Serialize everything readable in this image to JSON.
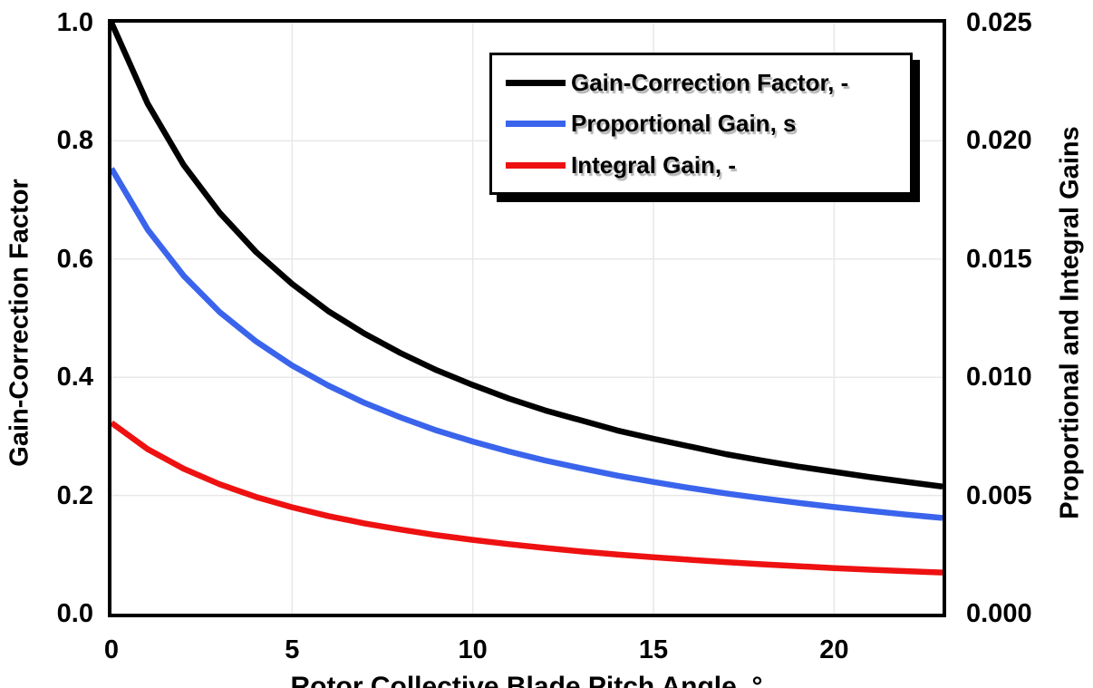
{
  "chart_data": {
    "type": "line",
    "title": "",
    "xlabel": "Rotor Collective Blade Pitch Angle, °",
    "ylabel_left": "Gain-Correction Factor",
    "ylabel_right": "Proportional and Integral Gains",
    "xlim": [
      0,
      23
    ],
    "ylim_left": [
      0,
      1.0
    ],
    "ylim_right": [
      0,
      0.025
    ],
    "grid": true,
    "legend_position": "top-right-inside",
    "x_ticks": [
      "0",
      "5",
      "10",
      "15",
      "20"
    ],
    "x_tick_values": [
      0,
      5,
      10,
      15,
      20
    ],
    "y_ticks_left": [
      "0.0",
      "0.2",
      "0.4",
      "0.6",
      "0.8",
      "1.0"
    ],
    "y_tick_values_left": [
      0,
      0.2,
      0.4,
      0.6,
      0.8,
      1.0
    ],
    "y_ticks_right": [
      "0.000",
      "0.005",
      "0.010",
      "0.015",
      "0.020",
      "0.025"
    ],
    "y_tick_values_right": [
      0,
      0.005,
      0.01,
      0.015,
      0.02,
      0.025
    ],
    "x": [
      0,
      1,
      2,
      3,
      4,
      5,
      6,
      7,
      8,
      9,
      10,
      11,
      12,
      13,
      14,
      15,
      16,
      17,
      18,
      19,
      20,
      21,
      22,
      23
    ],
    "series": [
      {
        "name": "Gain-Correction Factor, -",
        "axis": "left",
        "color": "#000000",
        "values": [
          1.0,
          0.863,
          0.759,
          0.678,
          0.612,
          0.558,
          0.512,
          0.474,
          0.441,
          0.412,
          0.387,
          0.364,
          0.344,
          0.327,
          0.31,
          0.296,
          0.283,
          0.27,
          0.259,
          0.249,
          0.24,
          0.231,
          0.223,
          0.215
        ]
      },
      {
        "name": "Proportional Gain, s",
        "axis": "right",
        "color": "#3A64EC",
        "values": [
          0.01883,
          0.01625,
          0.01429,
          0.01275,
          0.01152,
          0.0105,
          0.00965,
          0.00892,
          0.0083,
          0.00775,
          0.00728,
          0.00686,
          0.00648,
          0.00615,
          0.00584,
          0.00557,
          0.00532,
          0.00509,
          0.00488,
          0.00469,
          0.00451,
          0.00435,
          0.00419,
          0.00405
        ]
      },
      {
        "name": "Integral Gain, -",
        "axis": "right",
        "color": "#EE1111",
        "values": [
          0.00807,
          0.00696,
          0.00613,
          0.00547,
          0.00494,
          0.0045,
          0.00413,
          0.00382,
          0.00356,
          0.00332,
          0.00312,
          0.00294,
          0.00278,
          0.00263,
          0.0025,
          0.00239,
          0.00228,
          0.00218,
          0.00209,
          0.00201,
          0.00193,
          0.00186,
          0.0018,
          0.00174
        ]
      }
    ],
    "grid_color": "#E8E8E8",
    "line_width": 6.5
  }
}
